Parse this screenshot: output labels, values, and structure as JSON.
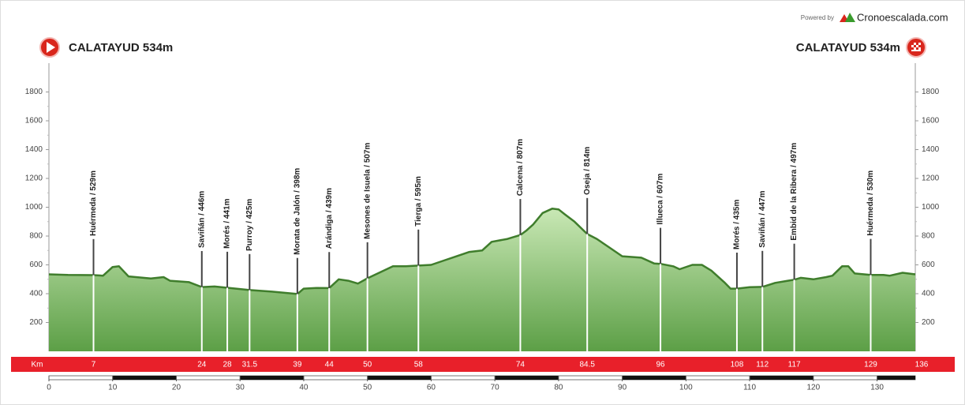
{
  "chart_data": {
    "type": "elevation-profile",
    "powered_by": "Powered by",
    "brand": "Cronoescalada.com",
    "start_label": "CALATAYUD 534m",
    "finish_label": "CALATAYUD 534m",
    "km_label": "Km",
    "color": "#5fa84b",
    "xlim": [
      0,
      136
    ],
    "ylim": [
      0,
      2000
    ],
    "yticks": [
      200,
      400,
      600,
      800,
      1000,
      1200,
      1400,
      1600,
      1800
    ],
    "xticks": [
      0,
      10,
      20,
      30,
      40,
      50,
      60,
      70,
      80,
      90,
      100,
      110,
      120,
      130
    ],
    "x": [
      0,
      3,
      7,
      8.5,
      10,
      11,
      12.5,
      16,
      18,
      19,
      22,
      24,
      26,
      28,
      31.5,
      35,
      39,
      40,
      42,
      44,
      45.5,
      47,
      48.5,
      50,
      54,
      56,
      58,
      60,
      62,
      64,
      66,
      68,
      69.5,
      72,
      74,
      75,
      76,
      77.5,
      79,
      80,
      81,
      82.5,
      84.5,
      86,
      88,
      90,
      93,
      95,
      96,
      98,
      99,
      101,
      102.5,
      104,
      106,
      107,
      108,
      110,
      112,
      114,
      116,
      117,
      118,
      120,
      122,
      123,
      124.5,
      125.5,
      126.5,
      129,
      131,
      132,
      134,
      136
    ],
    "values": [
      534,
      530,
      529,
      525,
      585,
      590,
      520,
      505,
      515,
      490,
      480,
      446,
      450,
      441,
      425,
      414,
      398,
      435,
      440,
      439,
      500,
      490,
      470,
      507,
      590,
      590,
      595,
      600,
      630,
      660,
      690,
      700,
      760,
      780,
      807,
      840,
      880,
      960,
      990,
      985,
      950,
      900,
      814,
      780,
      720,
      660,
      650,
      610,
      607,
      590,
      570,
      600,
      600,
      560,
      480,
      435,
      435,
      445,
      447,
      475,
      490,
      497,
      510,
      500,
      515,
      525,
      590,
      590,
      540,
      530,
      530,
      525,
      545,
      534
    ],
    "waypoints": [
      {
        "km": 7,
        "elevation": 529,
        "label": "Huérmeda / 529m"
      },
      {
        "km": 24,
        "elevation": 446,
        "label": "Saviñán / 446m"
      },
      {
        "km": 28,
        "elevation": 441,
        "label": "Morés / 441m"
      },
      {
        "km": 31.5,
        "elevation": 425,
        "label": "Purroy / 425m"
      },
      {
        "km": 39,
        "elevation": 398,
        "label": "Morata de Jalón / 398m"
      },
      {
        "km": 44,
        "elevation": 439,
        "label": "Arándiga / 439m"
      },
      {
        "km": 50,
        "elevation": 507,
        "label": "Mesones de Isuela / 507m"
      },
      {
        "km": 58,
        "elevation": 595,
        "label": "Tierga / 595m"
      },
      {
        "km": 74,
        "elevation": 807,
        "label": "Calcena / 807m"
      },
      {
        "km": 84.5,
        "elevation": 814,
        "label": "Oseja / 814m"
      },
      {
        "km": 96,
        "elevation": 607,
        "label": "Illueca / 607m"
      },
      {
        "km": 108,
        "elevation": 435,
        "label": "Morés / 435m"
      },
      {
        "km": 112,
        "elevation": 447,
        "label": "Saviñán / 447m"
      },
      {
        "km": 117,
        "elevation": 497,
        "label": "Embid de la Ribera / 497m"
      },
      {
        "km": 129,
        "elevation": 530,
        "label": "Huérmeda / 530m"
      }
    ]
  }
}
